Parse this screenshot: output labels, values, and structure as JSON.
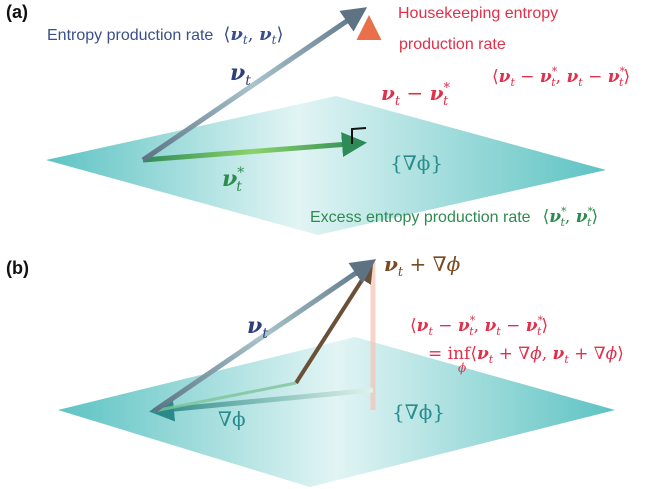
{
  "panel_a": {
    "label": "(a)",
    "entropy_rate_label": "Entropy production rate",
    "housekeeping_label_line1": "Housekeeping entropy",
    "housekeeping_label_line2": "production rate",
    "excess_label": "Excess entropy production rate",
    "grad_set_label": "{∇ϕ}"
  },
  "panel_b": {
    "label": "(b)",
    "grad_label": "∇ϕ",
    "grad_set_label": "{∇ϕ}"
  },
  "colors": {
    "plane": "#5cc6c6",
    "nu_arrow": "#5d7a8a",
    "nu_star_arrow": "#2e8b57",
    "housekeeping_arrow": "#f08060",
    "shifted_arrow": "#7a5a3a",
    "grad_arrow": "#3a8a8a",
    "blue_text": "#3a4f8a",
    "red_text": "#e0304a",
    "green_text": "#2e8b4f",
    "teal_text": "#2a8c8c",
    "brown_text": "#7a4a20"
  }
}
